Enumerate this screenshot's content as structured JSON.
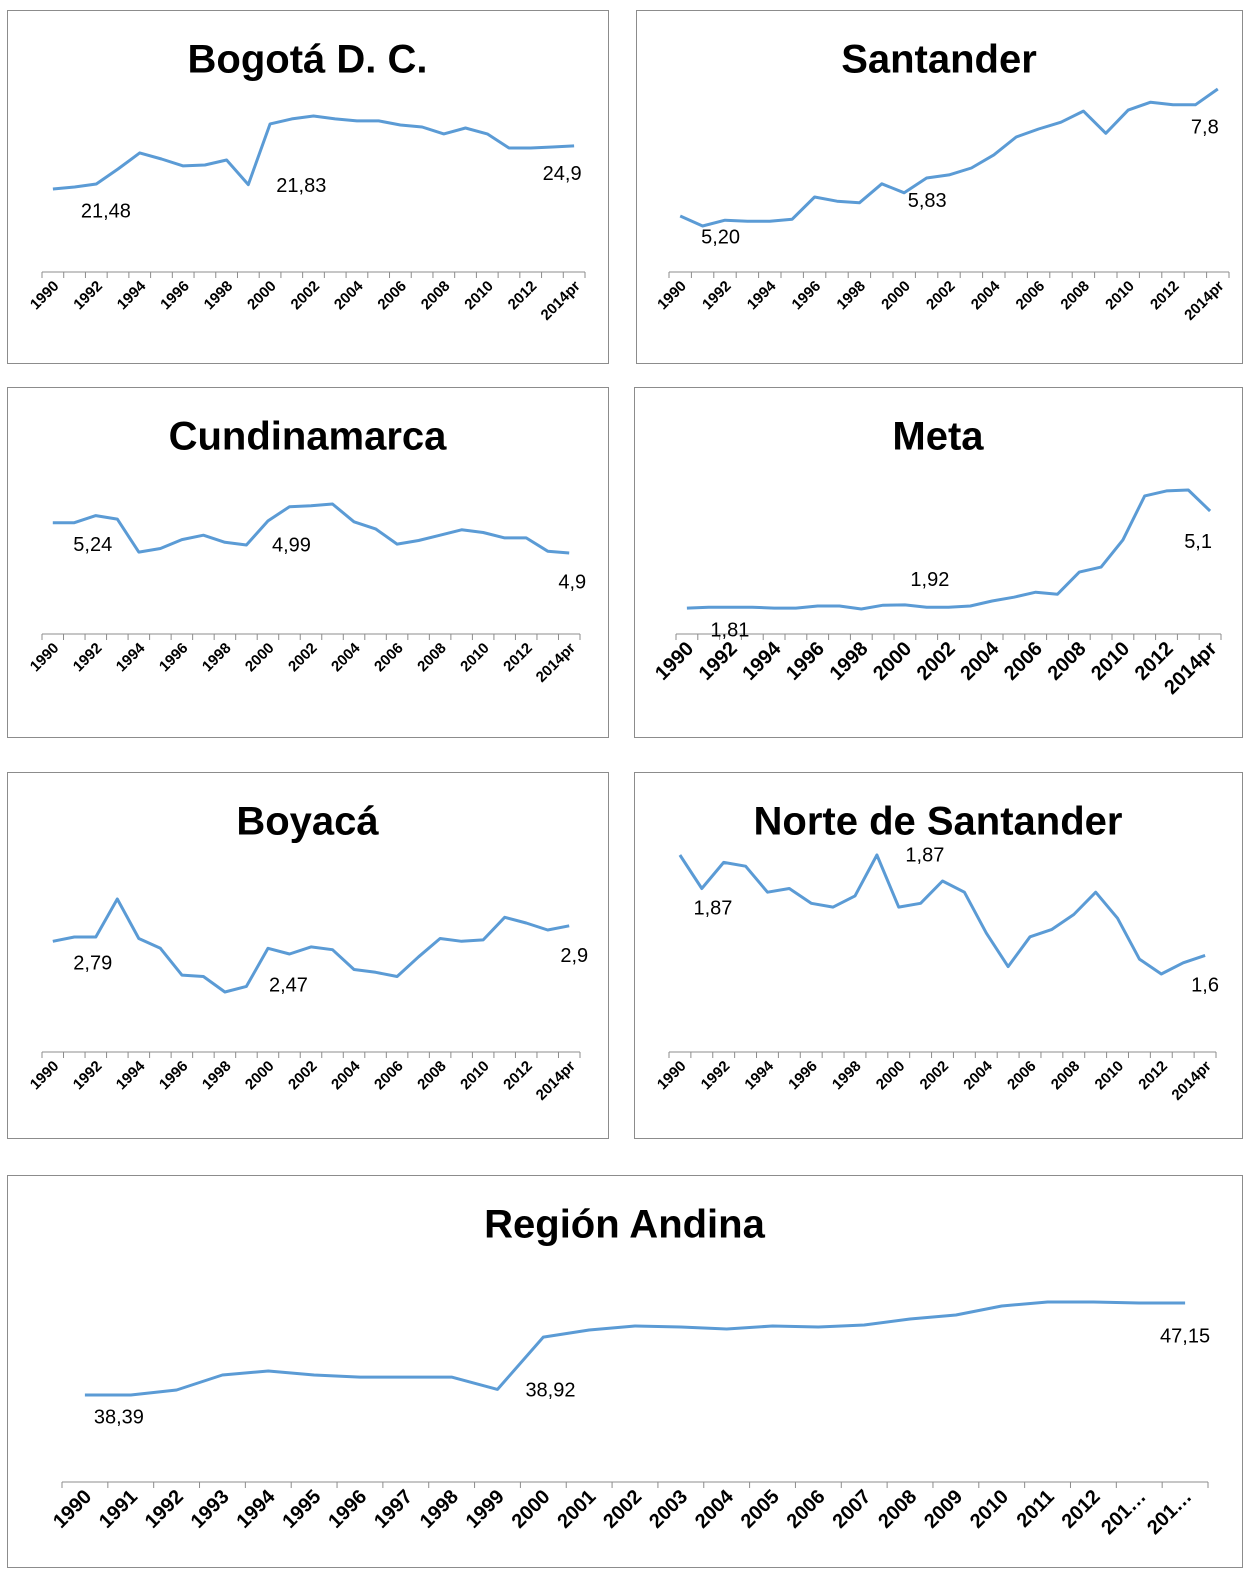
{
  "chart_data": [
    {
      "type": "line",
      "title": "Bogotá D. C.",
      "color": "#5b9bd5",
      "categories": [
        "1990",
        null,
        "1992",
        null,
        "1994",
        null,
        "1996",
        null,
        "1998",
        null,
        "2000",
        null,
        "2002",
        null,
        "2004",
        null,
        "2006",
        null,
        "2008",
        null,
        "2010",
        null,
        "2012",
        null,
        "2014pr"
      ],
      "values": [
        21.48,
        21.64,
        21.88,
        23.07,
        24.34,
        23.86,
        23.31,
        23.38,
        23.78,
        21.83,
        26.64,
        27.04,
        27.27,
        27.04,
        26.88,
        26.88,
        26.56,
        26.4,
        25.85,
        26.32,
        25.85,
        24.73,
        24.73,
        24.81,
        24.9
      ],
      "value_labels": [
        "21,48",
        null,
        null,
        null,
        null,
        null,
        null,
        null,
        null,
        "21,83",
        null,
        null,
        null,
        null,
        null,
        null,
        null,
        null,
        null,
        null,
        null,
        null,
        null,
        null,
        "24,9"
      ]
    },
    {
      "type": "line",
      "title": "Santander",
      "color": "#5b9bd5",
      "categories": [
        "1990",
        null,
        "1992",
        null,
        "1994",
        null,
        "1996",
        null,
        "1998",
        null,
        "2000",
        null,
        "2002",
        null,
        "2004",
        null,
        "2006",
        null,
        "2008",
        null,
        "2010",
        null,
        "2012",
        null,
        "2014pr"
      ],
      "values": [
        5.39,
        5.2,
        5.31,
        5.29,
        5.29,
        5.33,
        5.75,
        5.67,
        5.64,
        6.0,
        5.83,
        6.11,
        6.17,
        6.3,
        6.55,
        6.89,
        7.04,
        7.17,
        7.38,
        6.96,
        7.4,
        7.55,
        7.5,
        7.5,
        7.8
      ],
      "value_labels": [
        null,
        "5,20",
        null,
        null,
        null,
        null,
        null,
        null,
        null,
        null,
        "5,83",
        null,
        null,
        null,
        null,
        null,
        null,
        null,
        null,
        null,
        null,
        null,
        null,
        null,
        "7,8"
      ]
    },
    {
      "type": "line",
      "title": "Cundinamarca",
      "color": "#5b9bd5",
      "categories": [
        "1990",
        null,
        "1992",
        null,
        "1994",
        null,
        "1996",
        null,
        "1998",
        null,
        "2000",
        null,
        "2002",
        null,
        "2004",
        null,
        "2006",
        null,
        "2008",
        null,
        "2010",
        null,
        "2012",
        null,
        "2014pr"
      ],
      "values": [
        5.24,
        5.24,
        5.32,
        5.28,
        4.91,
        4.95,
        5.05,
        5.1,
        5.02,
        4.99,
        5.26,
        5.42,
        5.43,
        5.45,
        5.25,
        5.17,
        5.0,
        5.04,
        5.1,
        5.16,
        5.13,
        5.07,
        5.07,
        4.92,
        4.9
      ],
      "value_labels": [
        "5,24",
        null,
        null,
        null,
        null,
        null,
        null,
        null,
        null,
        "4,99",
        null,
        null,
        null,
        null,
        null,
        null,
        null,
        null,
        null,
        null,
        null,
        null,
        null,
        null,
        "4,9"
      ]
    },
    {
      "type": "line",
      "title": "Meta",
      "color": "#5b9bd5",
      "categories": [
        "1990",
        null,
        "1992",
        null,
        "1994",
        null,
        "1996",
        null,
        "1998",
        null,
        "2000",
        null,
        "2002",
        null,
        "2004",
        null,
        "2006",
        null,
        "2008",
        null,
        "2010",
        null,
        "2012",
        null,
        "2014pr"
      ],
      "values": [
        1.81,
        1.84,
        1.84,
        1.84,
        1.81,
        1.81,
        1.88,
        1.88,
        1.78,
        1.91,
        1.92,
        1.84,
        1.84,
        1.88,
        2.05,
        2.18,
        2.35,
        2.28,
        3.03,
        3.2,
        4.12,
        5.61,
        5.78,
        5.81,
        5.1
      ],
      "value_labels": [
        "1,81",
        null,
        null,
        null,
        null,
        null,
        null,
        null,
        null,
        null,
        "1,92",
        null,
        null,
        null,
        null,
        null,
        null,
        null,
        null,
        null,
        null,
        null,
        null,
        null,
        "5,1"
      ]
    },
    {
      "type": "line",
      "title": "Boyacá",
      "color": "#5b9bd5",
      "categories": [
        "1990",
        null,
        "1992",
        null,
        "1994",
        null,
        "1996",
        null,
        "1998",
        null,
        "2000",
        null,
        "2002",
        null,
        "2004",
        null,
        "2006",
        null,
        "2008",
        null,
        "2010",
        null,
        "2012",
        null,
        "2014pr"
      ],
      "values": [
        2.79,
        2.82,
        2.82,
        3.09,
        2.81,
        2.74,
        2.55,
        2.54,
        2.43,
        2.47,
        2.74,
        2.7,
        2.75,
        2.73,
        2.59,
        2.57,
        2.54,
        2.68,
        2.81,
        2.79,
        2.8,
        2.96,
        2.92,
        2.87,
        2.9
      ],
      "value_labels": [
        "2,79",
        null,
        null,
        null,
        null,
        null,
        null,
        null,
        null,
        "2,47",
        null,
        null,
        null,
        null,
        null,
        null,
        null,
        null,
        null,
        null,
        null,
        null,
        null,
        null,
        "2,9"
      ]
    },
    {
      "type": "line",
      "title": "Norte de Santander",
      "color": "#5b9bd5",
      "categories": [
        "1990",
        null,
        "1992",
        null,
        "1994",
        null,
        "1996",
        null,
        "1998",
        null,
        "2000",
        null,
        "2002",
        null,
        "2004",
        null,
        "2006",
        null,
        "2008",
        null,
        "2010",
        null,
        "2012",
        null,
        "2014pr"
      ],
      "values": [
        1.87,
        1.78,
        1.85,
        1.84,
        1.77,
        1.78,
        1.74,
        1.73,
        1.76,
        1.87,
        1.73,
        1.74,
        1.8,
        1.77,
        1.66,
        1.57,
        1.65,
        1.67,
        1.71,
        1.77,
        1.7,
        1.59,
        1.55,
        1.58,
        1.6
      ],
      "value_labels": [
        "1,87",
        null,
        null,
        null,
        null,
        null,
        null,
        null,
        null,
        "1,87",
        null,
        null,
        null,
        null,
        null,
        null,
        null,
        null,
        null,
        null,
        null,
        null,
        null,
        null,
        "1,6"
      ]
    },
    {
      "type": "line",
      "title": "Región Andina",
      "color": "#5b9bd5",
      "categories": [
        "1990",
        "1991",
        "1992",
        "1993",
        "1994",
        "1995",
        "1996",
        "1997",
        "1998",
        "1999",
        "2000",
        "2001",
        "2002",
        "2003",
        "2004",
        "2005",
        "2006",
        "2007",
        "2008",
        "2009",
        "2010",
        "2011",
        "2012",
        "201…",
        "201…"
      ],
      "values": [
        38.39,
        38.39,
        38.87,
        40.3,
        40.68,
        40.3,
        40.1,
        40.1,
        40.1,
        38.92,
        43.91,
        44.58,
        44.96,
        44.87,
        44.68,
        44.96,
        44.87,
        45.06,
        45.63,
        46.01,
        46.87,
        47.25,
        47.25,
        47.15,
        47.15
      ],
      "value_labels": [
        "38,39",
        null,
        null,
        null,
        null,
        null,
        null,
        null,
        null,
        "38,92",
        null,
        null,
        null,
        null,
        null,
        null,
        null,
        null,
        null,
        null,
        null,
        null,
        null,
        null,
        "47,15"
      ]
    }
  ]
}
